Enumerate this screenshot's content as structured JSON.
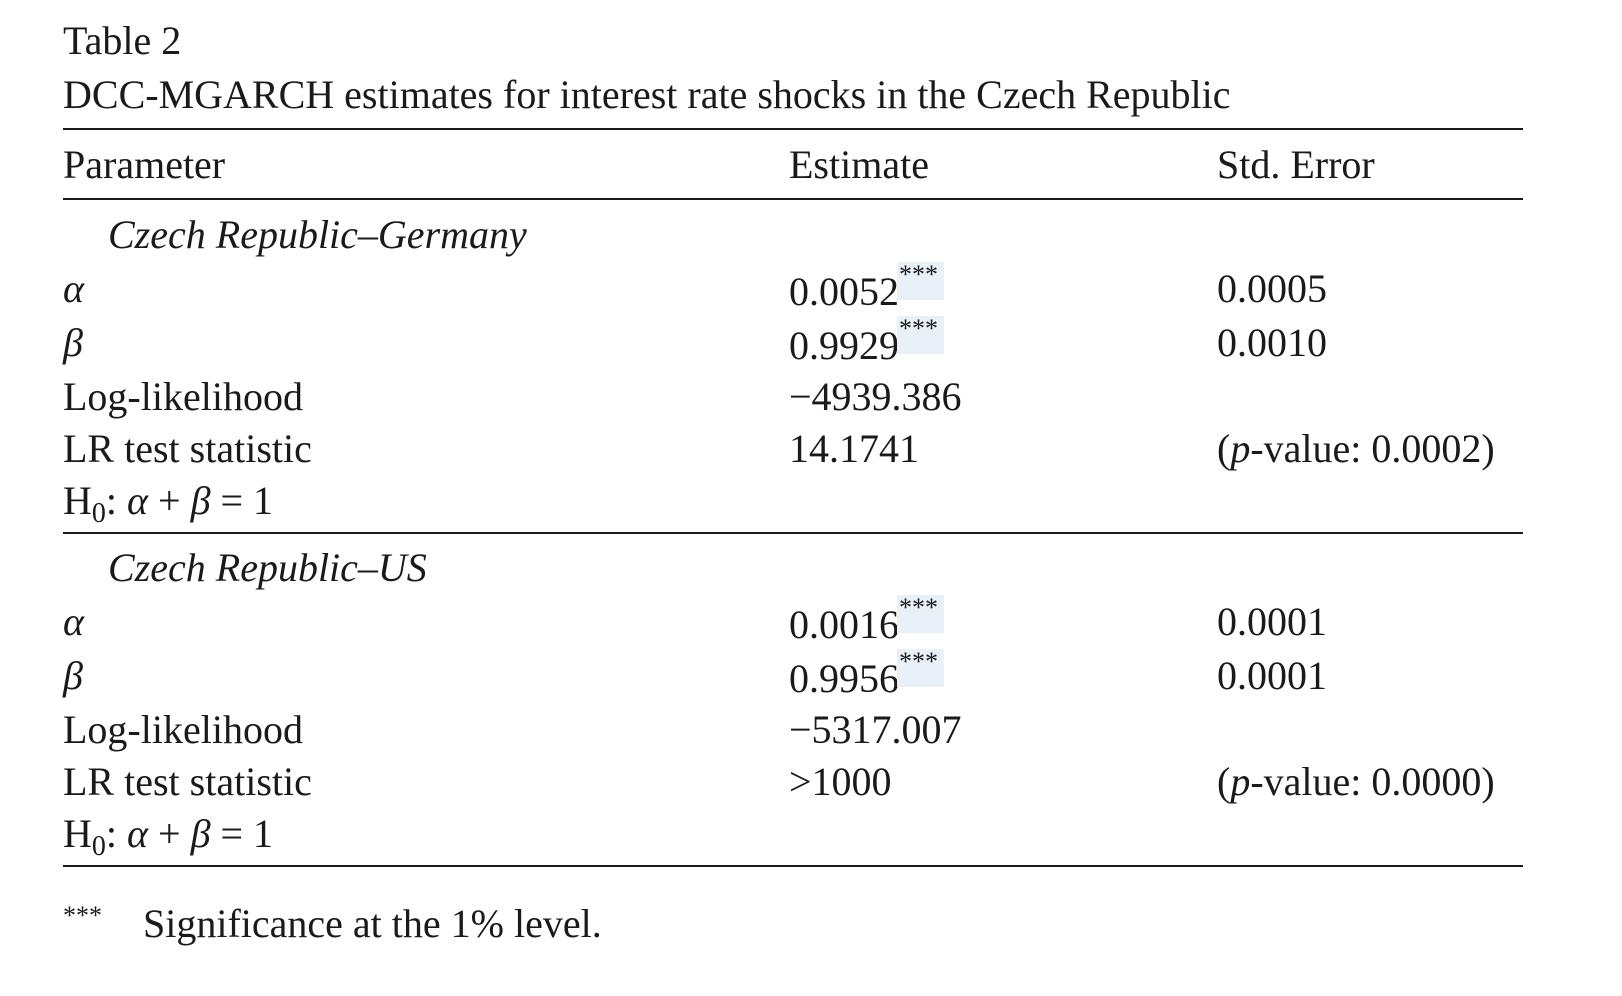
{
  "caption": {
    "label": "Table 2",
    "title": "DCC-MGARCH estimates for interest rate shocks in the Czech Republic"
  },
  "header": {
    "parameter": "Parameter",
    "estimate": "Estimate",
    "std_error": "Std. Error"
  },
  "groups": [
    {
      "title": "Czech Republic–Germany",
      "alpha": {
        "label": "α",
        "estimate": "0.0052",
        "stars": "***",
        "std_error": "0.0005"
      },
      "beta": {
        "label": "β",
        "estimate": "0.9929",
        "stars": "***",
        "std_error": "0.0010"
      },
      "loglik": {
        "label": "Log-likelihood",
        "estimate": "−4939.386"
      },
      "lr": {
        "label": "LR test statistic",
        "estimate": "14.1741",
        "pvalue_italic": "p",
        "pvalue_rest": "-value: 0.0002)",
        "pvalue_open": "("
      },
      "h0": {
        "h": "H",
        "sub": "0",
        "expr_a": ": ",
        "alpha": "α",
        "plus": " + ",
        "beta": "β",
        "eq": " = 1"
      }
    },
    {
      "title": "Czech Republic–US",
      "alpha": {
        "label": "α",
        "estimate": "0.0016",
        "stars": "***",
        "std_error": "0.0001"
      },
      "beta": {
        "label": "β",
        "estimate": "0.9956",
        "stars": "***",
        "std_error": "0.0001"
      },
      "loglik": {
        "label": "Log-likelihood",
        "estimate": "−5317.007"
      },
      "lr": {
        "label": "LR test statistic",
        "estimate": ">1000",
        "pvalue_italic": "p",
        "pvalue_rest": "-value: 0.0000)",
        "pvalue_open": "("
      },
      "h0": {
        "h": "H",
        "sub": "0",
        "expr_a": ": ",
        "alpha": "α",
        "plus": " + ",
        "beta": "β",
        "eq": " = 1"
      }
    }
  ],
  "footnote": {
    "mark": "***",
    "text": "Significance at the 1% level."
  },
  "colors": {
    "text": "#1a1a1a",
    "star_highlight": "#e8f0f8"
  }
}
